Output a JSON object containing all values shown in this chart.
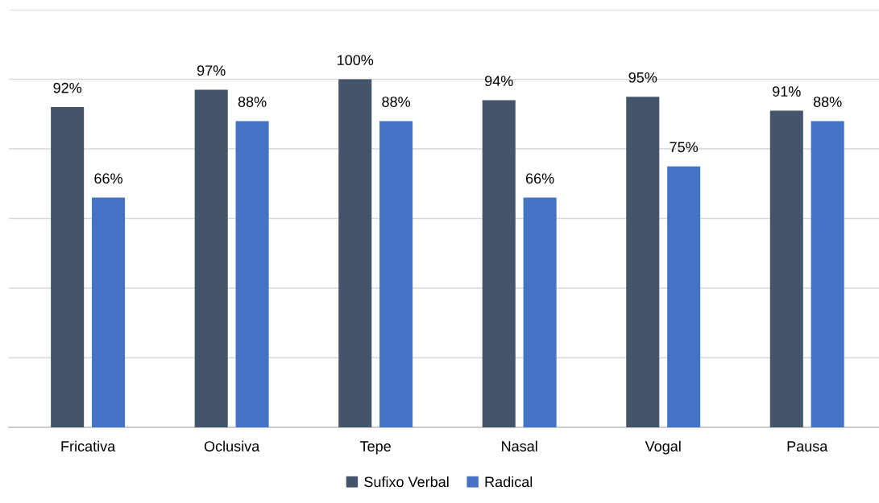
{
  "chart_data": {
    "type": "bar",
    "categories": [
      "Fricativa",
      "Oclusiva",
      "Tepe",
      "Nasal",
      "Vogal",
      "Pausa"
    ],
    "series": [
      {
        "name": "Sufixo Verbal",
        "color": "#44546a",
        "values": [
          92,
          97,
          100,
          94,
          95,
          91
        ],
        "value_labels": [
          "92%",
          "97%",
          "100%",
          "94%",
          "95%",
          "91%"
        ]
      },
      {
        "name": "Radical",
        "color": "#4472c4",
        "values": [
          66,
          88,
          88,
          66,
          75,
          88
        ],
        "value_labels": [
          "66%",
          "88%",
          "88%",
          "66%",
          "75%",
          "88%"
        ]
      }
    ],
    "ylim": [
      0,
      120
    ],
    "yticks": [
      {
        "value": 0,
        "label": null
      },
      {
        "value": 20,
        "label": null
      },
      {
        "value": 40,
        "label": null
      },
      {
        "value": 60,
        "label": null
      },
      {
        "value": 80,
        "label": null
      },
      {
        "value": 100,
        "label": null
      },
      {
        "value": 120,
        "label": null
      }
    ],
    "tick_labels": "x",
    "grid": "y",
    "legend": "bottom"
  }
}
